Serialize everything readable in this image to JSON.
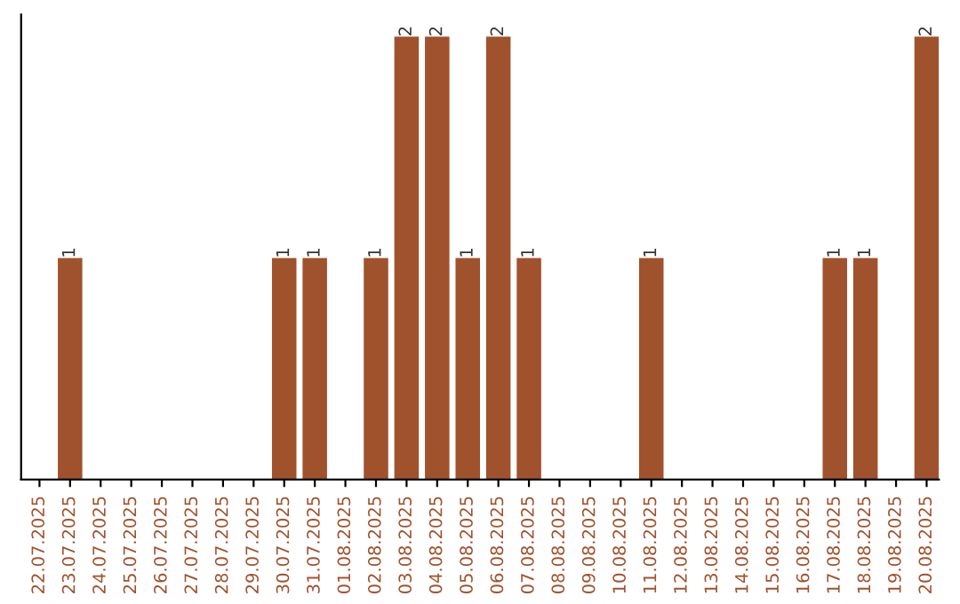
{
  "chart_data": {
    "type": "bar",
    "categories": [
      "22.07.2025",
      "23.07.2025",
      "24.07.2025",
      "25.07.2025",
      "26.07.2025",
      "27.07.2025",
      "28.07.2025",
      "29.07.2025",
      "30.07.2025",
      "31.07.2025",
      "01.08.2025",
      "02.08.2025",
      "03.08.2025",
      "04.08.2025",
      "05.08.2025",
      "06.08.2025",
      "07.08.2025",
      "08.08.2025",
      "09.08.2025",
      "10.08.2025",
      "11.08.2025",
      "12.08.2025",
      "13.08.2025",
      "14.08.2025",
      "15.08.2025",
      "16.08.2025",
      "17.08.2025",
      "18.08.2025",
      "19.08.2025",
      "20.08.2025"
    ],
    "values": [
      0,
      1,
      0,
      0,
      0,
      0,
      0,
      0,
      1,
      1,
      0,
      1,
      2,
      2,
      1,
      2,
      1,
      0,
      0,
      0,
      1,
      0,
      0,
      0,
      0,
      0,
      1,
      1,
      0,
      2
    ],
    "value_labels": [
      null,
      "1",
      null,
      null,
      null,
      null,
      null,
      null,
      "1",
      "1",
      null,
      "1",
      "2",
      "2",
      "1",
      "2",
      "1",
      null,
      null,
      null,
      "1",
      null,
      null,
      null,
      null,
      null,
      "1",
      "1",
      null,
      "2"
    ],
    "color": "#a0522d",
    "ylim": [
      0,
      2.1
    ],
    "tick_labels": "x",
    "grid": false,
    "legend": false
  }
}
